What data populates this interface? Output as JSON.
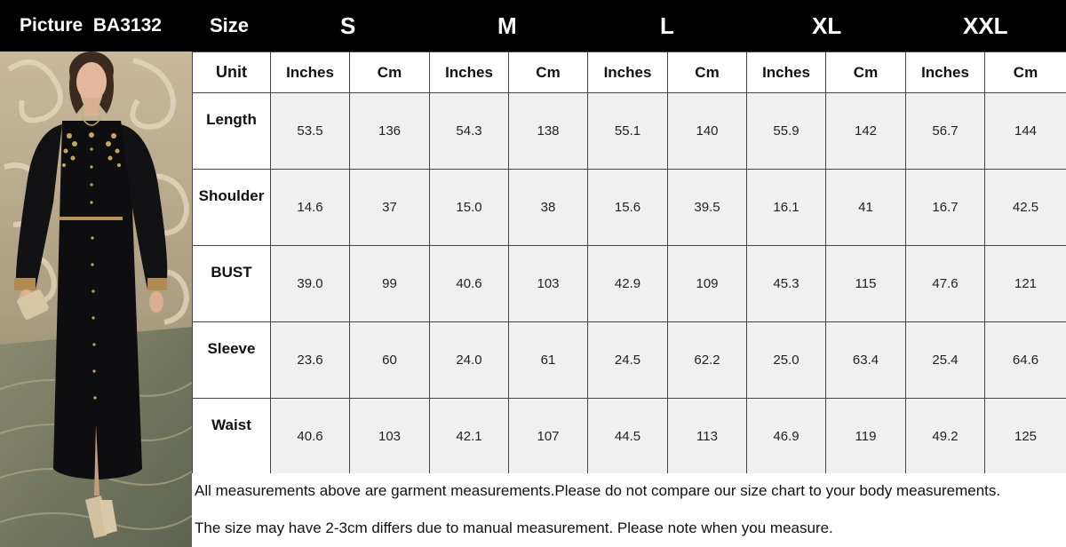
{
  "header": {
    "picture_label": "Picture",
    "model": "BA3132",
    "size_label": "Size",
    "sizes": [
      "S",
      "M",
      "L",
      "XL",
      "XXL"
    ]
  },
  "table": {
    "unit_label": "Unit",
    "unit_columns": [
      "Inches",
      "Cm",
      "Inches",
      "Cm",
      "Inches",
      "Cm",
      "Inches",
      "Cm",
      "Inches",
      "Cm"
    ],
    "rows": [
      {
        "label": "Length",
        "values": [
          "53.5",
          "136",
          "54.3",
          "138",
          "55.1",
          "140",
          "55.9",
          "142",
          "56.7",
          "144"
        ]
      },
      {
        "label": "Shoulder",
        "values": [
          "14.6",
          "37",
          "15.0",
          "38",
          "15.6",
          "39.5",
          "16.1",
          "41",
          "16.7",
          "42.5"
        ]
      },
      {
        "label": "BUST",
        "values": [
          "39.0",
          "99",
          "40.6",
          "103",
          "42.9",
          "109",
          "45.3",
          "115",
          "47.6",
          "121"
        ]
      },
      {
        "label": "Sleeve",
        "values": [
          "23.6",
          "60",
          "24.0",
          "61",
          "24.5",
          "62.2",
          "25.0",
          "63.4",
          "25.4",
          "64.6"
        ]
      },
      {
        "label": "Waist",
        "values": [
          "40.6",
          "103",
          "42.1",
          "107",
          "44.5",
          "113",
          "46.9",
          "119",
          "49.2",
          "125"
        ]
      }
    ]
  },
  "notes": {
    "line1": "All measurements above are garment measurements.Please do not compare our size chart to your body measurements.",
    "line2": "The size may have 2-3cm differs due to manual measurement. Please note when you measure."
  },
  "photo": {
    "icon": "model-dress-photo"
  }
}
